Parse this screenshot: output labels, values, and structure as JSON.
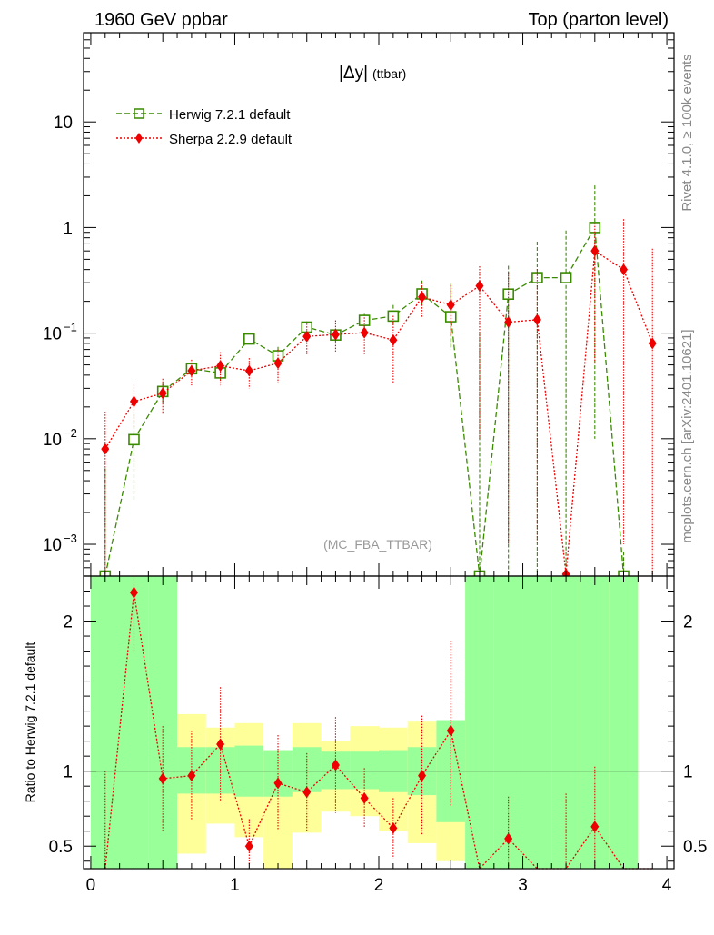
{
  "header": {
    "left": "1960 GeV ppbar",
    "right": "Top (parton level)"
  },
  "side": {
    "rivet": "Rivet 4.1.0, ≥ 100k events",
    "mcplots": "mcplots.cern.ch [arXiv:2401.10621]"
  },
  "colors": {
    "herwig": "#3a8a00",
    "sherpa": "#ee0000",
    "band_green": "#99ff99",
    "band_yellow": "#ffff99"
  },
  "chart_data": [
    {
      "type": "line",
      "title": "|Δy|",
      "title_suffix": "(ttbar)",
      "watermark": "(MC_FBA_TTBAR)",
      "yscale": "log",
      "xlim": [
        -0.05,
        4.05
      ],
      "ylim": [
        0.0005,
        70
      ],
      "yticks": [
        {
          "value": 10,
          "label": "10"
        },
        {
          "value": 1,
          "label": "1"
        },
        {
          "value": 0.1,
          "label": "10",
          "exp": "−1"
        },
        {
          "value": 0.01,
          "label": "10",
          "exp": "−2"
        },
        {
          "value": 0.001,
          "label": "10",
          "exp": "−3"
        }
      ],
      "legend": {
        "position": "top-left"
      },
      "series": [
        {
          "name": "Herwig 7.2.1 default",
          "style": "dashed-open-square",
          "x": [
            0.1,
            0.3,
            0.5,
            0.7,
            0.9,
            1.1,
            1.3,
            1.5,
            1.7,
            1.9,
            2.1,
            2.3,
            2.5,
            2.7,
            2.9,
            3.1,
            3.3,
            3.5,
            3.7
          ],
          "y": [
            0.00045,
            0.0098,
            0.028,
            0.046,
            0.042,
            0.088,
            0.061,
            0.114,
            0.096,
            0.132,
            0.145,
            0.235,
            0.143,
            0.00045,
            0.234,
            0.335,
            0.335,
            1.0,
            0.00045
          ],
          "yerr_lo": [
            0.0004,
            0.0072,
            0.006,
            0.006,
            0.006,
            0.01,
            0.013,
            0.015,
            0.014,
            0.02,
            0.025,
            0.05,
            0.073,
            0.0004,
            0.234,
            0.335,
            0.335,
            0.99,
            0.0004
          ],
          "yerr_hi": [
            0.0048,
            0.0072,
            0.006,
            0.006,
            0.006,
            0.01,
            0.013,
            0.015,
            0.014,
            0.02,
            0.04,
            0.08,
            0.15,
            0.1,
            0.2,
            0.4,
            0.6,
            1.5,
            0.0004
          ]
        },
        {
          "name": "Sherpa 2.2.9 default",
          "style": "dotted-filled-diamond",
          "x": [
            0.1,
            0.3,
            0.5,
            0.7,
            0.9,
            1.1,
            1.3,
            1.5,
            1.7,
            1.9,
            2.1,
            2.3,
            2.5,
            2.7,
            2.9,
            3.1,
            3.3,
            3.5,
            3.7,
            3.9
          ],
          "y": [
            0.008,
            0.0225,
            0.027,
            0.044,
            0.049,
            0.044,
            0.052,
            0.093,
            0.097,
            0.101,
            0.086,
            0.22,
            0.185,
            0.28,
            0.127,
            0.134,
            0.00052,
            0.6,
            0.4,
            0.08
          ],
          "yerr_lo": [
            0.0075,
            0.01,
            0.01,
            0.012,
            0.017,
            0.014,
            0.018,
            0.03,
            0.03,
            0.038,
            0.052,
            0.08,
            0.09,
            0.27,
            0.126,
            0.133,
            0.0004,
            0.55,
            0.399,
            0.0799
          ],
          "yerr_hi": [
            0.01,
            0.01,
            0.01,
            0.012,
            0.017,
            0.014,
            0.018,
            0.03,
            0.035,
            0.04,
            0.06,
            0.08,
            0.1,
            0.15,
            0.25,
            0.27,
            0.0,
            0.5,
            0.8,
            0.55
          ]
        }
      ]
    },
    {
      "type": "line",
      "ylabel": "Ratio to Herwig 7.2.1 default",
      "xlim": [
        -0.05,
        4.05
      ],
      "ylim": [
        0.35,
        2.3
      ],
      "xticks": [
        0,
        1,
        2,
        3,
        4
      ],
      "yticks": [
        0.5,
        1,
        2
      ],
      "reference_line": 1,
      "bands": {
        "x_edges": [
          0.0,
          0.4,
          0.6,
          0.8,
          1.0,
          1.2,
          1.4,
          1.6,
          1.8,
          2.0,
          2.2,
          2.4,
          2.6,
          2.8,
          3.0,
          3.2,
          3.4,
          3.6,
          3.8
        ],
        "green_lo": [
          0.3,
          0.35,
          0.85,
          0.85,
          0.83,
          0.83,
          0.86,
          0.88,
          0.88,
          0.86,
          0.84,
          0.66,
          0.3,
          0.3,
          0.3,
          0.3,
          0.3,
          0.3
        ],
        "green_hi": [
          2.6,
          2.6,
          1.16,
          1.16,
          1.17,
          1.14,
          1.16,
          1.13,
          1.13,
          1.14,
          1.16,
          1.34,
          2.6,
          2.6,
          2.6,
          2.6,
          2.6,
          2.6
        ],
        "yellow_lo": [
          0.3,
          0.3,
          0.45,
          0.65,
          0.56,
          0.3,
          0.59,
          0.73,
          0.7,
          0.6,
          0.52,
          0.4,
          0.3,
          0.3,
          0.3,
          0.3,
          0.3,
          0.3
        ],
        "yellow_hi": [
          2.6,
          2.6,
          1.38,
          1.29,
          1.32,
          1.1,
          1.32,
          1.2,
          1.3,
          1.29,
          1.33,
          1.3,
          2.6,
          2.6,
          2.6,
          2.6,
          2.6,
          2.6
        ]
      },
      "series": [
        {
          "name": "Sherpa 2.2.9 default",
          "x": [
            0.1,
            0.3,
            0.5,
            0.7,
            0.9,
            1.1,
            1.3,
            1.5,
            1.7,
            1.9,
            2.1,
            2.3,
            2.5,
            2.7,
            2.9,
            3.1,
            3.3,
            3.5,
            3.7,
            3.9
          ],
          "y": [
            0.3,
            2.19,
            0.95,
            0.97,
            1.18,
            0.5,
            0.92,
            0.86,
            1.04,
            0.82,
            0.62,
            0.97,
            1.27,
            0.3,
            0.55,
            0.3,
            0.3,
            0.63,
            0.3,
            0.3
          ],
          "yerr_lo": [
            0.0,
            0.4,
            0.35,
            0.3,
            0.38,
            0.12,
            0.32,
            0.26,
            0.32,
            0.2,
            0.2,
            0.4,
            0.5,
            0.0,
            0.2,
            0.0,
            0.0,
            0.3,
            0.0,
            0.0
          ],
          "yerr_hi": [
            0.7,
            0.4,
            0.35,
            0.3,
            0.38,
            0.18,
            0.32,
            0.26,
            0.32,
            0.2,
            0.2,
            0.4,
            0.6,
            0.0,
            0.28,
            0.0,
            0.55,
            0.4,
            0.0,
            0.0
          ]
        }
      ]
    }
  ]
}
